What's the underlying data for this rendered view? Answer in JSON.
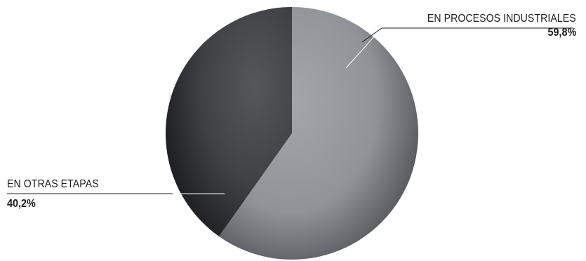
{
  "chart_data": {
    "type": "pie",
    "title": "",
    "slices": [
      {
        "label": "EN PROCESOS INDUSTRIALES",
        "value": 59.8,
        "display": "59,8%",
        "color": "#8f9296"
      },
      {
        "label": "EN OTRAS ETAPAS",
        "value": 40.2,
        "display": "40,2%",
        "color": "#3c3e42"
      }
    ],
    "start_angle_deg": 0,
    "direction": "clockwise",
    "legend": "none"
  }
}
